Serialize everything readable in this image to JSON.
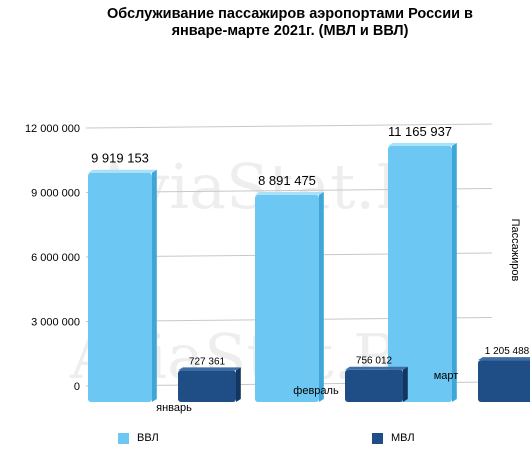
{
  "title_line1": "Обслуживание пассажиров аэропортами России в",
  "title_line2": "январе-марте 2021г. (МВЛ и ВВЛ)",
  "watermark": "AviaStat.Ru",
  "colors": {
    "vvl": "#6CC8F2",
    "mvl": "#1F4E86",
    "grid": "#C8C8C8"
  },
  "chart_data": {
    "type": "bar",
    "title": "Обслуживание пассажиров аэропортами России в январе-марте 2021г. (МВЛ и ВВЛ)",
    "ylabel": "Пассажиров",
    "xlabel": "",
    "categories": [
      "январь",
      "февраль",
      "март"
    ],
    "ylim": [
      0,
      12000000
    ],
    "yticks": [
      0,
      3000000,
      6000000,
      9000000,
      12000000
    ],
    "ytick_labels": [
      "0",
      "3 000 000",
      "6 000 000",
      "9 000 000",
      "12 000 000"
    ],
    "grid": true,
    "legend_position": "bottom",
    "series": [
      {
        "name": "ВВЛ",
        "values": [
          9919153,
          8891475,
          11165937
        ],
        "labels": [
          "9 919 153",
          "8 891 475",
          "11 165 937"
        ]
      },
      {
        "name": "МВЛ",
        "values": [
          727361,
          756012,
          1205488
        ],
        "labels": [
          "727 361",
          "756 012",
          "1 205 488"
        ]
      }
    ]
  }
}
